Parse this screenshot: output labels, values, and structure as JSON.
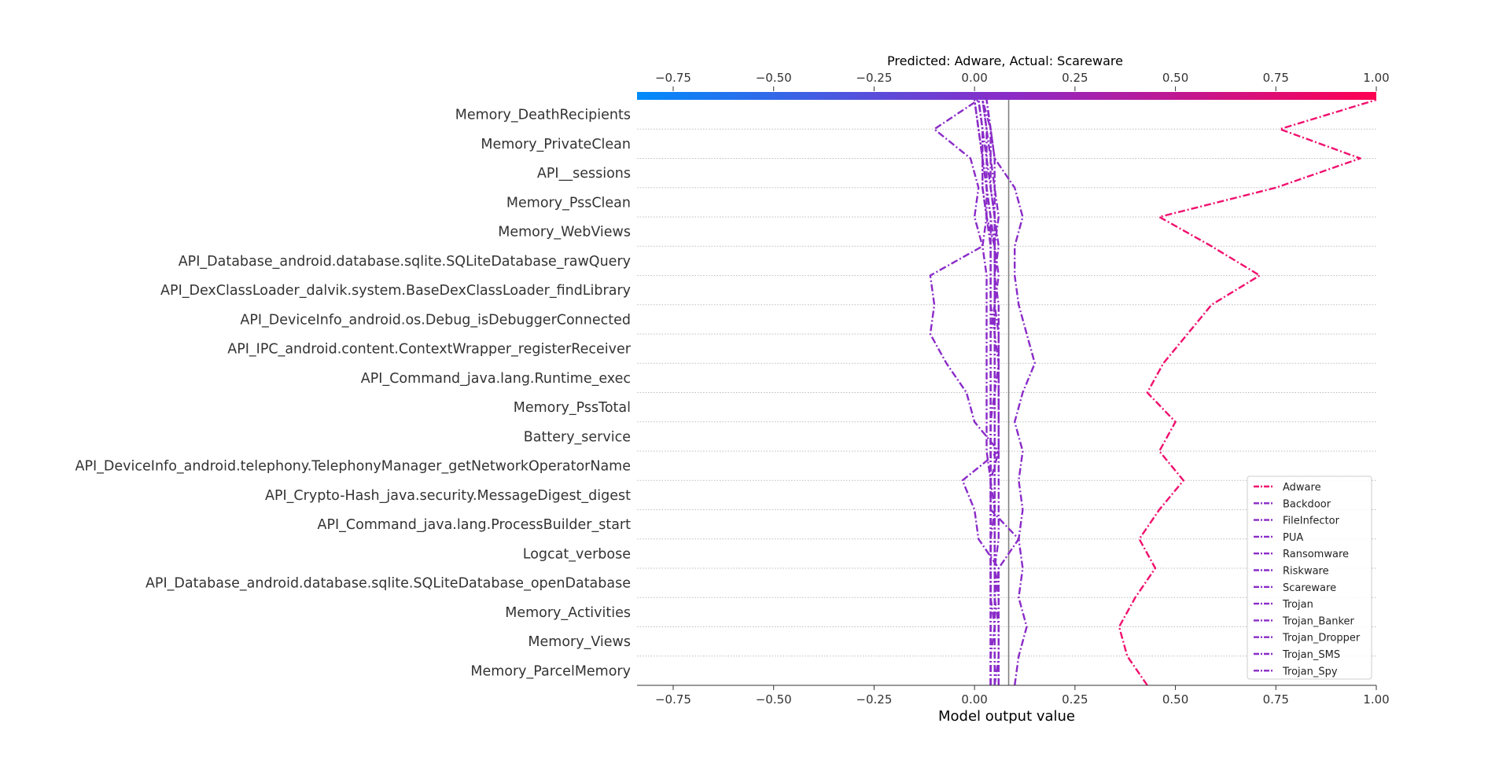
{
  "chart_data": {
    "type": "line",
    "subtype": "shap-decision-plot",
    "title": "Predicted: Adware, Actual: Scareware",
    "xlabel": "Model output value",
    "ylabel": "",
    "xlim": [
      -0.84,
      1.0
    ],
    "xticks": [
      -0.75,
      -0.5,
      -0.25,
      0.0,
      0.25,
      0.5,
      0.75,
      1.0
    ],
    "xtick_labels": [
      "−0.75",
      "−0.50",
      "−0.25",
      "0.00",
      "0.25",
      "0.50",
      "0.75",
      "1.00"
    ],
    "base_value": 0.085,
    "features": [
      "Memory_DeathRecipients",
      "Memory_PrivateClean",
      "API__sessions",
      "Memory_PssClean",
      "Memory_WebViews",
      "API_Database_android.database.sqlite.SQLiteDatabase_rawQuery",
      "API_DexClassLoader_dalvik.system.BaseDexClassLoader_findLibrary",
      "API_DeviceInfo_android.os.Debug_isDebuggerConnected",
      "API_IPC_android.content.ContextWrapper_registerReceiver",
      "API_Command_java.lang.Runtime_exec",
      "Memory_PssTotal",
      "Battery_service",
      "API_DeviceInfo_android.telephony.TelephonyManager_getNetworkOperatorName",
      "API_Crypto-Hash_java.security.MessageDigest_digest",
      "API_Command_java.lang.ProcessBuilder_start",
      "Logcat_verbose",
      "API_Database_android.database.sqlite.SQLiteDatabase_openDatabase",
      "Memory_Activities",
      "Memory_Views",
      "Memory_ParcelMemory"
    ],
    "series_values_note": "values listed from bottom (base) to top (final output)",
    "series": [
      {
        "name": "Adware",
        "color": "#f0106e",
        "values": [
          0.43,
          0.38,
          0.36,
          0.4,
          0.45,
          0.41,
          0.46,
          0.52,
          0.46,
          0.5,
          0.43,
          0.47,
          0.53,
          0.59,
          0.71,
          0.59,
          0.46,
          0.75,
          0.96,
          0.76,
          1.0
        ]
      },
      {
        "name": "Backdoor",
        "color": "#8a2bc8",
        "values": [
          0.1,
          0.11,
          0.13,
          0.11,
          0.12,
          0.11,
          0.12,
          0.11,
          0.12,
          0.1,
          0.12,
          0.15,
          0.13,
          0.11,
          0.1,
          0.1,
          0.12,
          0.1,
          0.05,
          0.04,
          0.03
        ]
      },
      {
        "name": "FileInfector",
        "color": "#8a2bc8",
        "values": [
          0.04,
          0.04,
          0.04,
          0.04,
          0.04,
          0.04,
          0.04,
          0.04,
          0.04,
          0.04,
          0.05,
          0.05,
          0.05,
          0.05,
          0.05,
          0.05,
          0.05,
          0.05,
          0.05,
          0.04,
          0.02
        ]
      },
      {
        "name": "PUA",
        "color": "#8a2bc8",
        "values": [
          0.04,
          0.04,
          0.04,
          0.04,
          0.04,
          0.04,
          0.04,
          0.04,
          0.04,
          0.04,
          0.04,
          0.04,
          0.04,
          0.04,
          0.04,
          0.04,
          0.03,
          0.03,
          0.02,
          0.02,
          0.01
        ]
      },
      {
        "name": "Ransomware",
        "color": "#8a2bc8",
        "values": [
          0.05,
          0.05,
          0.05,
          0.05,
          0.05,
          0.05,
          0.05,
          0.05,
          0.05,
          0.05,
          0.05,
          0.05,
          0.05,
          0.04,
          0.04,
          0.04,
          0.04,
          0.03,
          0.03,
          0.02,
          0.01
        ]
      },
      {
        "name": "Riskware",
        "color": "#8a2bc8",
        "values": [
          0.05,
          0.06,
          0.06,
          0.05,
          0.05,
          0.05,
          0.05,
          0.05,
          0.05,
          0.05,
          0.05,
          0.06,
          0.05,
          0.05,
          0.06,
          0.05,
          0.03,
          0.02,
          0.02,
          0.01,
          0.0
        ]
      },
      {
        "name": "Scareware",
        "color": "#8a2bc8",
        "values": [
          0.04,
          0.04,
          0.05,
          0.04,
          0.04,
          0.04,
          0.05,
          0.04,
          0.03,
          0.03,
          0.03,
          0.03,
          0.03,
          0.03,
          0.03,
          0.02,
          0.03,
          0.02,
          0.02,
          0.01,
          0.0
        ]
      },
      {
        "name": "Trojan",
        "color": "#8a2bc8",
        "values": [
          0.05,
          0.05,
          0.05,
          0.05,
          0.05,
          0.05,
          0.05,
          0.05,
          0.05,
          0.05,
          0.05,
          0.05,
          0.05,
          0.05,
          0.05,
          0.05,
          0.05,
          0.04,
          0.04,
          0.03,
          0.02
        ]
      },
      {
        "name": "Trojan_Banker",
        "color": "#8a2bc8",
        "values": [
          0.06,
          0.06,
          0.06,
          0.06,
          0.05,
          0.06,
          0.06,
          0.06,
          0.06,
          0.06,
          0.06,
          0.06,
          0.06,
          0.06,
          0.05,
          0.06,
          0.05,
          0.04,
          0.03,
          0.03,
          0.02
        ]
      },
      {
        "name": "Trojan_Dropper",
        "color": "#8a2bc8",
        "values": [
          0.05,
          0.05,
          0.05,
          0.05,
          0.06,
          0.01,
          0.0,
          -0.03,
          0.06,
          0.0,
          -0.02,
          -0.07,
          -0.11,
          -0.1,
          -0.11,
          0.02,
          0.0,
          0.01,
          -0.01,
          -0.1,
          0.01
        ]
      },
      {
        "name": "Trojan_SMS",
        "color": "#8a2bc8",
        "values": [
          0.04,
          0.04,
          0.04,
          0.04,
          0.04,
          0.04,
          0.04,
          0.04,
          0.04,
          0.04,
          0.04,
          0.04,
          0.04,
          0.05,
          0.05,
          0.05,
          0.04,
          0.03,
          0.02,
          0.02,
          0.01
        ]
      },
      {
        "name": "Trojan_Spy",
        "color": "#8a2bc8",
        "values": [
          0.06,
          0.06,
          0.06,
          0.06,
          0.06,
          0.11,
          0.04,
          0.04,
          0.06,
          0.06,
          0.06,
          0.06,
          0.06,
          0.05,
          0.05,
          0.05,
          0.06,
          0.05,
          0.04,
          0.04,
          0.03
        ]
      }
    ],
    "colorbar": {
      "range": [
        -0.84,
        1.0
      ],
      "stops": [
        "#008bfb",
        "#8a2bc8",
        "#ff0052"
      ]
    },
    "legend_placement": "lower-right",
    "grid": "horizontal dotted per feature"
  }
}
